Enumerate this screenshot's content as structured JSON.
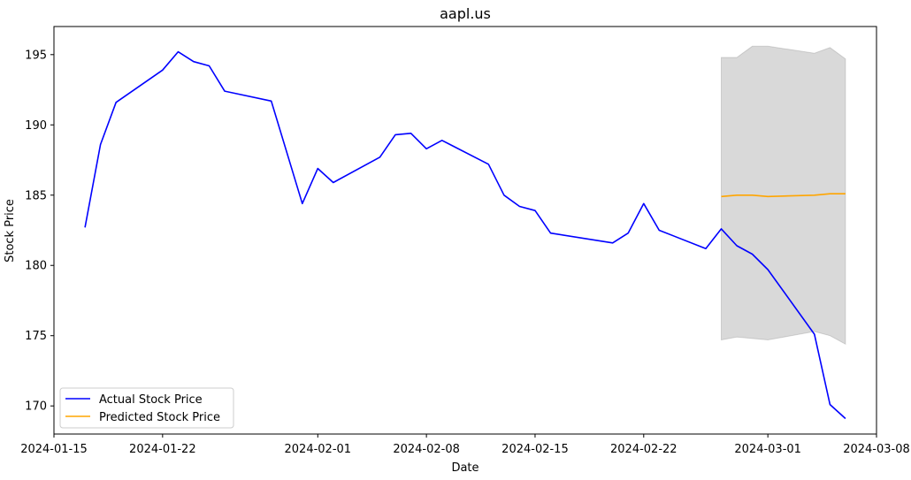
{
  "chart_data": {
    "type": "line",
    "title": "aapl.us",
    "xlabel": "Date",
    "ylabel": "Stock Price",
    "x_range": [
      "2024-01-15",
      "2024-03-08"
    ],
    "ylim": [
      168,
      197
    ],
    "x_ticks": [
      "2024-01-15",
      "2024-01-22",
      "2024-02-01",
      "2024-02-08",
      "2024-02-15",
      "2024-02-22",
      "2024-03-01",
      "2024-03-08"
    ],
    "y_ticks": [
      170,
      175,
      180,
      185,
      190,
      195
    ],
    "grid": false,
    "legend_position": "lower-left",
    "series": [
      {
        "name": "Actual Stock Price",
        "color": "#0000ff",
        "points": [
          [
            "2024-01-17",
            182.7
          ],
          [
            "2024-01-18",
            188.6
          ],
          [
            "2024-01-19",
            191.6
          ],
          [
            "2024-01-22",
            193.9
          ],
          [
            "2024-01-23",
            195.2
          ],
          [
            "2024-01-24",
            194.5
          ],
          [
            "2024-01-25",
            194.2
          ],
          [
            "2024-01-26",
            192.4
          ],
          [
            "2024-01-29",
            191.7
          ],
          [
            "2024-01-31",
            184.4
          ],
          [
            "2024-02-01",
            186.9
          ],
          [
            "2024-02-02",
            185.9
          ],
          [
            "2024-02-05",
            187.7
          ],
          [
            "2024-02-06",
            189.3
          ],
          [
            "2024-02-07",
            189.4
          ],
          [
            "2024-02-08",
            188.3
          ],
          [
            "2024-02-09",
            188.9
          ],
          [
            "2024-02-12",
            187.2
          ],
          [
            "2024-02-13",
            185.0
          ],
          [
            "2024-02-14",
            184.2
          ],
          [
            "2024-02-15",
            183.9
          ],
          [
            "2024-02-16",
            182.3
          ],
          [
            "2024-02-20",
            181.6
          ],
          [
            "2024-02-21",
            182.3
          ],
          [
            "2024-02-22",
            184.4
          ],
          [
            "2024-02-23",
            182.5
          ],
          [
            "2024-02-26",
            181.2
          ],
          [
            "2024-02-27",
            182.6
          ],
          [
            "2024-02-28",
            181.4
          ],
          [
            "2024-02-29",
            180.8
          ],
          [
            "2024-03-01",
            179.7
          ],
          [
            "2024-03-04",
            175.1
          ],
          [
            "2024-03-05",
            170.1
          ],
          [
            "2024-03-06",
            169.1
          ]
        ]
      },
      {
        "name": "Predicted Stock Price",
        "color": "#ffa500",
        "points": [
          [
            "2024-02-27",
            184.9
          ],
          [
            "2024-02-28",
            185.0
          ],
          [
            "2024-02-29",
            185.0
          ],
          [
            "2024-03-01",
            184.9
          ],
          [
            "2024-03-04",
            185.0
          ],
          [
            "2024-03-05",
            185.1
          ],
          [
            "2024-03-06",
            185.1
          ]
        ]
      }
    ],
    "confidence_band": {
      "color": "#808080",
      "points": [
        [
          "2024-02-27",
          174.7,
          194.8
        ],
        [
          "2024-02-28",
          174.9,
          194.8
        ],
        [
          "2024-02-29",
          174.8,
          195.6
        ],
        [
          "2024-03-01",
          174.7,
          195.6
        ],
        [
          "2024-03-04",
          175.3,
          195.1
        ],
        [
          "2024-03-05",
          175.0,
          195.5
        ],
        [
          "2024-03-06",
          174.4,
          194.7
        ]
      ]
    }
  }
}
